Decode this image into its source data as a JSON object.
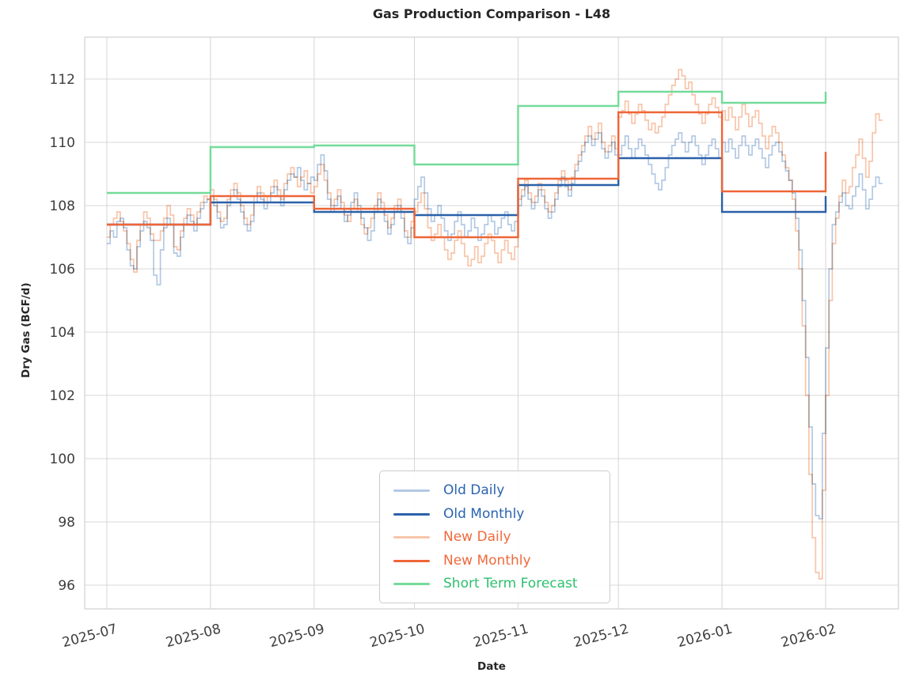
{
  "chart_data": {
    "type": "line",
    "title": "Gas Production Comparison - L48",
    "xlabel": "Date",
    "ylabel": "Dry Gas (BCF/d)",
    "x_tick_labels": [
      "2025-07",
      "2025-08",
      "2025-09",
      "2025-10",
      "2025-11",
      "2025-12",
      "2026-01",
      "2026-02"
    ],
    "y_ticks": [
      96,
      98,
      100,
      102,
      104,
      106,
      108,
      110,
      112
    ],
    "ylim": [
      95.2,
      113.3
    ],
    "grid": true,
    "legend_position": "lower center",
    "colors": {
      "background": "#ffffff",
      "gridline": "#d8d8d8",
      "plot_border": "#d4d4d4",
      "tick_text": "#3d3d3d",
      "title_text": "#262626"
    },
    "start_date": "2025-07-01",
    "month_day_offsets": [
      0,
      31,
      62,
      92,
      123,
      153,
      184,
      215
    ],
    "series": [
      {
        "name": "Old Daily",
        "kind": "daily-step",
        "color": "#b3c9e4",
        "label_color": "#2a64b0",
        "values": [
          106.8,
          107.2,
          107.0,
          107.5,
          107.6,
          107.3,
          106.6,
          106.1,
          106.0,
          106.7,
          107.2,
          107.5,
          107.3,
          106.9,
          105.8,
          105.5,
          106.6,
          107.3,
          107.6,
          107.4,
          106.5,
          106.4,
          107.0,
          107.4,
          107.7,
          107.5,
          107.2,
          107.6,
          107.9,
          108.1,
          108.2,
          108.3,
          108.0,
          107.6,
          107.3,
          107.4,
          108.0,
          108.3,
          108.5,
          108.2,
          107.8,
          107.4,
          107.2,
          107.5,
          108.1,
          108.4,
          108.2,
          107.9,
          108.1,
          108.4,
          108.6,
          108.3,
          108.0,
          108.5,
          108.8,
          109.0,
          108.9,
          109.2,
          108.8,
          108.5,
          108.7,
          108.9,
          108.8,
          109.3,
          109.6,
          109.1,
          108.2,
          107.8,
          108.0,
          108.3,
          107.9,
          107.5,
          107.7,
          108.1,
          108.4,
          108.0,
          107.6,
          107.3,
          106.9,
          107.2,
          107.8,
          108.2,
          107.9,
          107.5,
          107.1,
          107.4,
          107.8,
          108.0,
          107.6,
          107.0,
          106.8,
          107.3,
          108.2,
          108.6,
          108.9,
          108.4,
          107.9,
          107.5,
          107.7,
          108.0,
          107.6,
          107.2,
          106.9,
          107.1,
          107.5,
          107.8,
          107.4,
          107.0,
          107.2,
          107.6,
          107.3,
          106.9,
          107.1,
          107.4,
          107.7,
          107.5,
          107.1,
          107.3,
          107.6,
          107.8,
          107.4,
          107.2,
          107.5,
          108.0,
          108.3,
          108.6,
          108.2,
          107.9,
          108.1,
          108.5,
          108.3,
          107.9,
          107.6,
          107.8,
          108.2,
          108.6,
          108.9,
          108.6,
          108.3,
          108.7,
          109.1,
          109.4,
          109.7,
          110.0,
          110.2,
          109.9,
          110.1,
          110.3,
          109.8,
          109.5,
          109.7,
          110.0,
          109.6,
          109.6,
          109.9,
          110.2,
          109.8,
          109.5,
          109.8,
          110.1,
          109.9,
          109.6,
          109.3,
          109.0,
          108.7,
          108.5,
          108.8,
          109.2,
          109.6,
          109.9,
          110.1,
          110.3,
          110.0,
          109.7,
          110.0,
          110.2,
          109.9,
          109.6,
          109.3,
          109.6,
          109.9,
          110.1,
          109.8,
          109.5,
          110.0,
          109.7,
          110.1,
          109.8,
          109.5,
          109.9,
          110.2,
          109.9,
          109.6,
          109.9,
          110.1,
          109.8,
          109.5,
          109.2,
          109.6,
          109.9,
          110.0,
          109.7,
          109.4,
          109.1,
          108.8,
          108.4,
          107.6,
          106.6,
          105.0,
          103.2,
          101.0,
          99.2,
          98.2,
          98.1,
          100.8,
          103.5,
          106.0,
          107.4,
          107.8,
          108.1,
          108.4,
          108.0,
          107.9,
          108.3,
          108.6,
          109.0,
          108.5,
          107.9,
          108.2,
          108.6,
          108.9,
          108.7
        ]
      },
      {
        "name": "Old Monthly",
        "kind": "monthly-step",
        "color": "#2a61a9",
        "label_color": "#2a64b0",
        "values": [
          107.4,
          108.1,
          107.8,
          107.7,
          108.65,
          109.5,
          107.8,
          108.3
        ]
      },
      {
        "name": "New Daily",
        "kind": "daily-step",
        "color": "#f8c5aa",
        "label_color": "#ee6a3d",
        "values": [
          107.0,
          107.4,
          107.6,
          107.8,
          107.5,
          107.2,
          106.8,
          106.3,
          105.9,
          106.9,
          107.4,
          107.8,
          107.6,
          107.1,
          106.9,
          106.9,
          107.2,
          107.6,
          108.0,
          107.7,
          106.7,
          106.6,
          107.2,
          107.6,
          107.9,
          107.7,
          107.4,
          107.8,
          108.1,
          108.3,
          108.2,
          108.5,
          108.2,
          107.8,
          107.5,
          107.6,
          108.2,
          108.5,
          108.7,
          108.4,
          108.0,
          107.6,
          107.4,
          107.7,
          108.3,
          108.6,
          108.4,
          108.1,
          108.3,
          108.6,
          108.8,
          108.5,
          108.2,
          108.7,
          109.0,
          109.2,
          108.9,
          108.6,
          108.9,
          109.1,
          108.7,
          108.4,
          108.6,
          109.0,
          109.3,
          108.8,
          108.4,
          108.0,
          108.2,
          108.5,
          108.1,
          107.7,
          107.5,
          107.9,
          108.2,
          107.8,
          107.4,
          107.1,
          107.3,
          107.6,
          108.0,
          108.4,
          108.1,
          107.7,
          107.3,
          107.6,
          108.0,
          108.2,
          107.8,
          107.2,
          107.0,
          107.5,
          107.8,
          108.1,
          108.4,
          107.9,
          107.3,
          106.9,
          107.1,
          107.4,
          107.0,
          106.6,
          106.3,
          106.5,
          106.9,
          107.2,
          106.8,
          106.4,
          106.1,
          106.3,
          106.7,
          106.2,
          106.4,
          106.8,
          107.1,
          106.9,
          106.5,
          106.2,
          106.6,
          106.9,
          106.5,
          106.3,
          106.7,
          108.2,
          108.5,
          108.8,
          108.4,
          108.1,
          108.3,
          108.7,
          108.5,
          108.1,
          107.8,
          108.0,
          108.4,
          108.8,
          109.1,
          108.8,
          108.5,
          108.9,
          109.3,
          109.6,
          109.9,
          110.2,
          110.5,
          110.1,
          110.3,
          110.6,
          110.0,
          109.7,
          109.9,
          110.2,
          109.8,
          110.8,
          111.0,
          111.3,
          110.9,
          110.6,
          110.9,
          111.2,
          111.0,
          110.7,
          110.4,
          110.6,
          110.3,
          110.5,
          110.8,
          111.2,
          111.5,
          111.8,
          112.0,
          112.3,
          112.1,
          111.7,
          111.9,
          111.5,
          111.2,
          110.9,
          110.6,
          110.9,
          111.2,
          111.4,
          111.1,
          110.8,
          111.0,
          110.7,
          111.1,
          110.8,
          110.4,
          110.8,
          111.2,
          110.9,
          110.5,
          110.8,
          111.0,
          110.6,
          110.2,
          109.8,
          110.2,
          110.5,
          110.3,
          110.0,
          109.6,
          109.2,
          108.8,
          108.2,
          107.2,
          106.0,
          104.2,
          102.0,
          99.5,
          97.5,
          96.4,
          96.2,
          99.0,
          102.0,
          105.0,
          106.8,
          107.6,
          108.3,
          108.8,
          108.4,
          108.6,
          109.2,
          109.6,
          110.1,
          109.5,
          108.9,
          109.4,
          110.3,
          110.9,
          110.7
        ]
      },
      {
        "name": "New Monthly",
        "kind": "monthly-step",
        "color": "#ee6537",
        "label_color": "#ee6a3d",
        "values": [
          107.4,
          108.3,
          107.9,
          107.0,
          108.85,
          110.95,
          108.45,
          109.7
        ]
      },
      {
        "name": "Short Term Forecast",
        "kind": "monthly-step",
        "color": "#74db9a",
        "label_color": "#2dc06e",
        "values": [
          108.4,
          109.85,
          109.9,
          109.3,
          111.15,
          111.6,
          111.25,
          111.6
        ]
      }
    ]
  }
}
